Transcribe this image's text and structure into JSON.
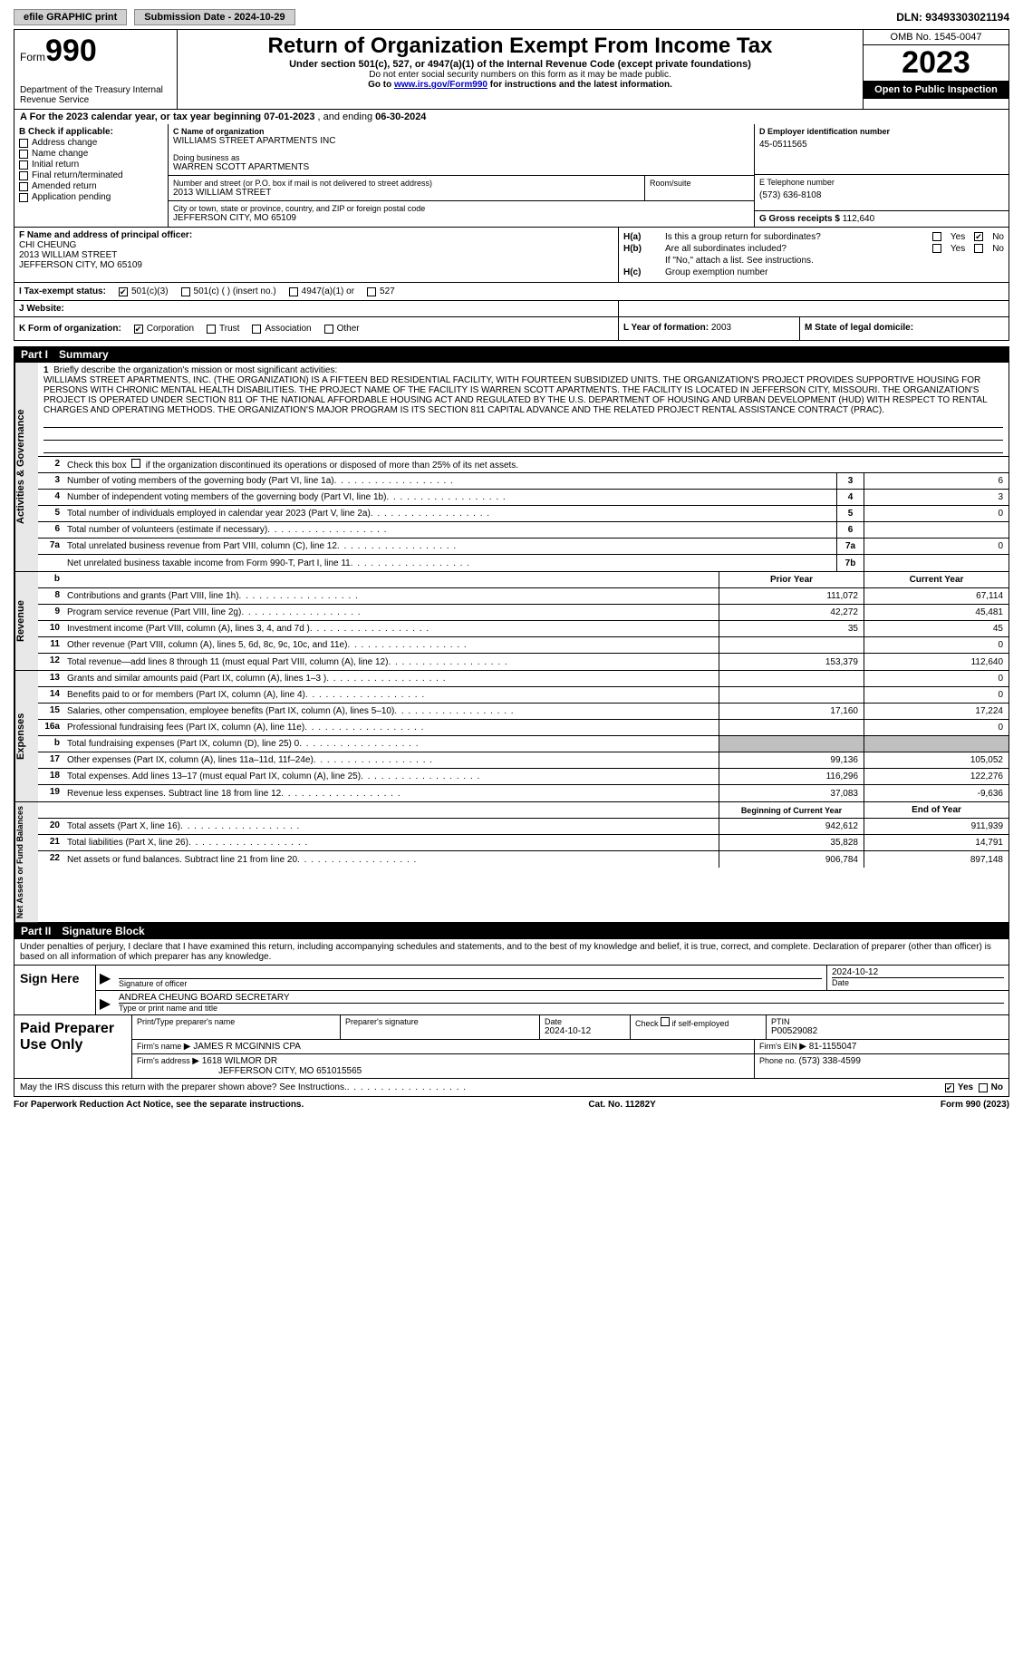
{
  "topbar": {
    "efile_btn": "efile GRAPHIC print",
    "submission_label": "Submission Date - 2024-10-29",
    "dln_label": "DLN: 93493303021194"
  },
  "header": {
    "form_label": "Form",
    "form_number": "990",
    "dept": "Department of the Treasury Internal Revenue Service",
    "title": "Return of Organization Exempt From Income Tax",
    "subtitle": "Under section 501(c), 527, or 4947(a)(1) of the Internal Revenue Code (except private foundations)",
    "ssn_warning": "Do not enter social security numbers on this form as it may be made public.",
    "goto": "Go to ",
    "goto_link": "www.irs.gov/Form990",
    "goto_suffix": " for instructions and the latest information.",
    "omb": "OMB No. 1545-0047",
    "year": "2023",
    "open": "Open to Public Inspection"
  },
  "row_a": {
    "prefix": "A  For the 2023 calendar year, or tax year beginning ",
    "begin": "07-01-2023",
    "mid": "   , and ending ",
    "end": "06-30-2024"
  },
  "section_b": {
    "header": "B Check if applicable:",
    "items": [
      "Address change",
      "Name change",
      "Initial return",
      "Final return/terminated",
      "Amended return",
      "Application pending"
    ]
  },
  "section_c": {
    "name_label": "C Name of organization",
    "name": "WILLIAMS STREET APARTMENTS INC",
    "dba_label": "Doing business as",
    "dba": "WARREN SCOTT APARTMENTS",
    "street_label": "Number and street (or P.O. box if mail is not delivered to street address)",
    "street": "2013 WILLIAM STREET",
    "room_label": "Room/suite",
    "city_label": "City or town, state or province, country, and ZIP or foreign postal code",
    "city": "JEFFERSON CITY, MO  65109"
  },
  "section_d": {
    "ein_label": "D Employer identification number",
    "ein": "45-0511565",
    "phone_label": "E Telephone number",
    "phone": "(573) 636-8108",
    "receipts_label": "G Gross receipts $ ",
    "receipts": "112,640"
  },
  "section_f": {
    "label": "F  Name and address of principal officer:",
    "name": "CHI CHEUNG",
    "street": "2013 WILLIAM STREET",
    "city": "JEFFERSON CITY, MO  65109"
  },
  "section_h": {
    "ha_label": "H(a)",
    "ha_text": "Is this a group return for subordinates?",
    "hb_label": "H(b)",
    "hb_text": "Are all subordinates included?",
    "hb_note": "If \"No,\" attach a list. See instructions.",
    "hc_label": "H(c)",
    "hc_text": "Group exemption number",
    "yes": "Yes",
    "no": "No"
  },
  "row_i": {
    "label": "I    Tax-exempt status:",
    "opt1": "501(c)(3)",
    "opt2": "501(c) (  ) (insert no.)",
    "opt3": "4947(a)(1) or",
    "opt4": "527"
  },
  "row_j": {
    "label": "J   Website:"
  },
  "row_k": {
    "label": "K Form of organization:",
    "opt1": "Corporation",
    "opt2": "Trust",
    "opt3": "Association",
    "opt4": "Other",
    "year_label": "L Year of formation: ",
    "year": "2003",
    "state_label": "M State of legal domicile:"
  },
  "part1": {
    "num": "Part I",
    "title": "Summary"
  },
  "governance": {
    "side": "Activities & Governance",
    "l1_label": "1",
    "l1_text": "Briefly describe the organization's mission or most significant activities:",
    "mission": "WILLIAMS STREET APARTMENTS, INC. (THE ORGANIZATION) IS A FIFTEEN BED RESIDENTIAL FACILITY, WITH FOURTEEN SUBSIDIZED UNITS. THE ORGANIZATION'S PROJECT PROVIDES SUPPORTIVE HOUSING FOR PERSONS WITH CHRONIC MENTAL HEALTH DISABILITIES. THE PROJECT NAME OF THE FACILITY IS WARREN SCOTT APARTMENTS. THE FACILITY IS LOCATED IN JEFFERSON CITY, MISSOURI. THE ORGANIZATION'S PROJECT IS OPERATED UNDER SECTION 811 OF THE NATIONAL AFFORDABLE HOUSING ACT AND REGULATED BY THE U.S. DEPARTMENT OF HOUSING AND URBAN DEVELOPMENT (HUD) WITH RESPECT TO RENTAL CHARGES AND OPERATING METHODS. THE ORGANIZATION'S MAJOR PROGRAM IS ITS SECTION 811 CAPITAL ADVANCE AND THE RELATED PROJECT RENTAL ASSISTANCE CONTRACT (PRAC).",
    "l2_num": "2",
    "l2_text": "Check this box       if the organization discontinued its operations or disposed of more than 25% of its net assets.",
    "lines": [
      {
        "num": "3",
        "desc": "Number of voting members of the governing body (Part VI, line 1a)",
        "box": "3",
        "val": "6"
      },
      {
        "num": "4",
        "desc": "Number of independent voting members of the governing body (Part VI, line 1b)",
        "box": "4",
        "val": "3"
      },
      {
        "num": "5",
        "desc": "Total number of individuals employed in calendar year 2023 (Part V, line 2a)",
        "box": "5",
        "val": "0"
      },
      {
        "num": "6",
        "desc": "Total number of volunteers (estimate if necessary)",
        "box": "6",
        "val": ""
      },
      {
        "num": "7a",
        "desc": "Total unrelated business revenue from Part VIII, column (C), line 12",
        "box": "7a",
        "val": "0"
      },
      {
        "num": "",
        "desc": "Net unrelated business taxable income from Form 990-T, Part I, line 11",
        "box": "7b",
        "val": ""
      }
    ]
  },
  "revenue": {
    "side": "Revenue",
    "header_b": "b",
    "prior_label": "Prior Year",
    "current_label": "Current Year",
    "lines": [
      {
        "num": "8",
        "desc": "Contributions and grants (Part VIII, line 1h)",
        "prior": "111,072",
        "curr": "67,114"
      },
      {
        "num": "9",
        "desc": "Program service revenue (Part VIII, line 2g)",
        "prior": "42,272",
        "curr": "45,481"
      },
      {
        "num": "10",
        "desc": "Investment income (Part VIII, column (A), lines 3, 4, and 7d )",
        "prior": "35",
        "curr": "45"
      },
      {
        "num": "11",
        "desc": "Other revenue (Part VIII, column (A), lines 5, 6d, 8c, 9c, 10c, and 11e)",
        "prior": "",
        "curr": "0"
      },
      {
        "num": "12",
        "desc": "Total revenue—add lines 8 through 11 (must equal Part VIII, column (A), line 12)",
        "prior": "153,379",
        "curr": "112,640"
      }
    ]
  },
  "expenses": {
    "side": "Expenses",
    "lines": [
      {
        "num": "13",
        "desc": "Grants and similar amounts paid (Part IX, column (A), lines 1–3 )",
        "prior": "",
        "curr": "0"
      },
      {
        "num": "14",
        "desc": "Benefits paid to or for members (Part IX, column (A), line 4)",
        "prior": "",
        "curr": "0"
      },
      {
        "num": "15",
        "desc": "Salaries, other compensation, employee benefits (Part IX, column (A), lines 5–10)",
        "prior": "17,160",
        "curr": "17,224"
      },
      {
        "num": "16a",
        "desc": "Professional fundraising fees (Part IX, column (A), line 11e)",
        "prior": "",
        "curr": "0"
      },
      {
        "num": "b",
        "desc": "Total fundraising expenses (Part IX, column (D), line 25) 0",
        "prior": "SHADED",
        "curr": "SHADED"
      },
      {
        "num": "17",
        "desc": "Other expenses (Part IX, column (A), lines 11a–11d, 11f–24e)",
        "prior": "99,136",
        "curr": "105,052"
      },
      {
        "num": "18",
        "desc": "Total expenses. Add lines 13–17 (must equal Part IX, column (A), line 25)",
        "prior": "116,296",
        "curr": "122,276"
      },
      {
        "num": "19",
        "desc": "Revenue less expenses. Subtract line 18 from line 12",
        "prior": "37,083",
        "curr": "-9,636"
      }
    ]
  },
  "netassets": {
    "side": "Net Assets or Fund Balances",
    "begin_label": "Beginning of Current Year",
    "end_label": "End of Year",
    "lines": [
      {
        "num": "20",
        "desc": "Total assets (Part X, line 16)",
        "prior": "942,612",
        "curr": "911,939"
      },
      {
        "num": "21",
        "desc": "Total liabilities (Part X, line 26)",
        "prior": "35,828",
        "curr": "14,791"
      },
      {
        "num": "22",
        "desc": "Net assets or fund balances. Subtract line 21 from line 20",
        "prior": "906,784",
        "curr": "897,148"
      }
    ]
  },
  "part2": {
    "num": "Part II",
    "title": "Signature Block"
  },
  "sig": {
    "declaration": "Under penalties of perjury, I declare that I have examined this return, including accompanying schedules and statements, and to the best of my knowledge and belief, it is true, correct, and complete. Declaration of preparer (other than officer) is based on all information of which preparer has any knowledge.",
    "sign_here": "Sign Here",
    "sig_officer_label": "Signature of officer",
    "date_label": "Date",
    "officer_name": "ANDREA CHEUNG  BOARD SECRETARY",
    "type_label": "Type or print name and title",
    "sig_date": "2024-10-12"
  },
  "prep": {
    "header": "Paid Preparer Use Only",
    "print_label": "Print/Type preparer's name",
    "sig_label": "Preparer's signature",
    "date_label": "Date",
    "date": "2024-10-12",
    "check_label": "Check         if self-employed",
    "ptin_label": "PTIN",
    "ptin": "P00529082",
    "firm_name_label": "Firm's name  ",
    "firm_name": "JAMES R MCGINNIS CPA",
    "firm_ein_label": "Firm's EIN  ",
    "firm_ein": "81-1155047",
    "firm_addr_label": "Firm's address ",
    "firm_addr1": "1618 WILMOR DR",
    "firm_addr2": "JEFFERSON CITY, MO  651015565",
    "phone_label": "Phone no. ",
    "phone": "(573) 338-4599"
  },
  "discuss": {
    "text": "May the IRS discuss this return with the preparer shown above? See Instructions.",
    "yes": "Yes",
    "no": "No"
  },
  "footer": {
    "left": "For Paperwork Reduction Act Notice, see the separate instructions.",
    "mid": "Cat. No. 11282Y",
    "right": "Form 990 (2023)"
  }
}
